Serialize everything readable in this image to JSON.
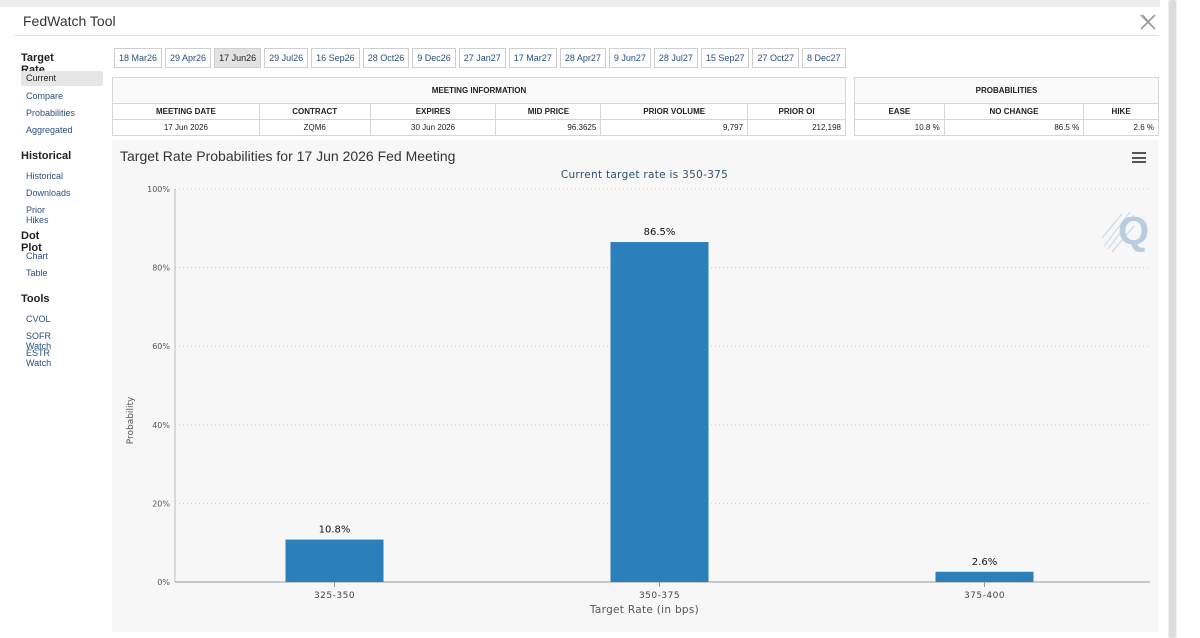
{
  "app": {
    "title": "FedWatch Tool"
  },
  "sidebar": {
    "sections": [
      {
        "heading": "Target Rate",
        "items": [
          "Current",
          "Compare",
          "Probabilities",
          "Aggregated"
        ]
      },
      {
        "heading": "Historical",
        "items": [
          "Historical",
          "Downloads",
          "Prior Hikes"
        ]
      },
      {
        "heading": "Dot Plot",
        "items": [
          "Chart",
          "Table"
        ]
      },
      {
        "heading": "Tools",
        "items": [
          "CVOL",
          "SOFR Watch",
          "ESTR Watch"
        ]
      }
    ],
    "active_item": "Current"
  },
  "tabs": [
    "18 Mar26",
    "29 Apr26",
    "17 Jun26",
    "29 Jul26",
    "16 Sep26",
    "28 Oct26",
    "9 Dec26",
    "27 Jan27",
    "17 Mar27",
    "28 Apr27",
    "9 Jun27",
    "28 Jul27",
    "15 Sep27",
    "27 Oct27",
    "8 Dec27"
  ],
  "active_tab": "17 Jun26",
  "meeting_info": {
    "caption": "MEETING INFORMATION",
    "headers": [
      "MEETING DATE",
      "CONTRACT",
      "EXPIRES",
      "MID PRICE",
      "PRIOR VOLUME",
      "PRIOR OI"
    ],
    "values": [
      "17 Jun 2026",
      "ZQM6",
      "30 Jun 2026",
      "96.3625",
      "9,797",
      "212,198"
    ]
  },
  "probabilities": {
    "caption": "PROBABILITIES",
    "headers": [
      "EASE",
      "NO CHANGE",
      "HIKE"
    ],
    "values": [
      "10.8 %",
      "86.5 %",
      "2.6 %"
    ]
  },
  "chart_data": {
    "type": "bar",
    "title": "Target Rate Probabilities for 17 Jun 2026 Fed Meeting",
    "subtitle": "Current target rate is 350-375",
    "xlabel": "Target Rate (in bps)",
    "ylabel": "Probability",
    "categories": [
      "325-350",
      "350-375",
      "375-400"
    ],
    "values": [
      10.8,
      86.5,
      2.6
    ],
    "data_labels": [
      "10.8%",
      "86.5%",
      "2.6%"
    ],
    "ylim": [
      0,
      100
    ],
    "y_ticks": [
      0,
      20,
      40,
      60,
      80,
      100
    ],
    "y_tick_labels": [
      "0%",
      "20%",
      "40%",
      "60%",
      "80%",
      "100%"
    ],
    "grid": true,
    "bar_color": "#2b7fba"
  }
}
